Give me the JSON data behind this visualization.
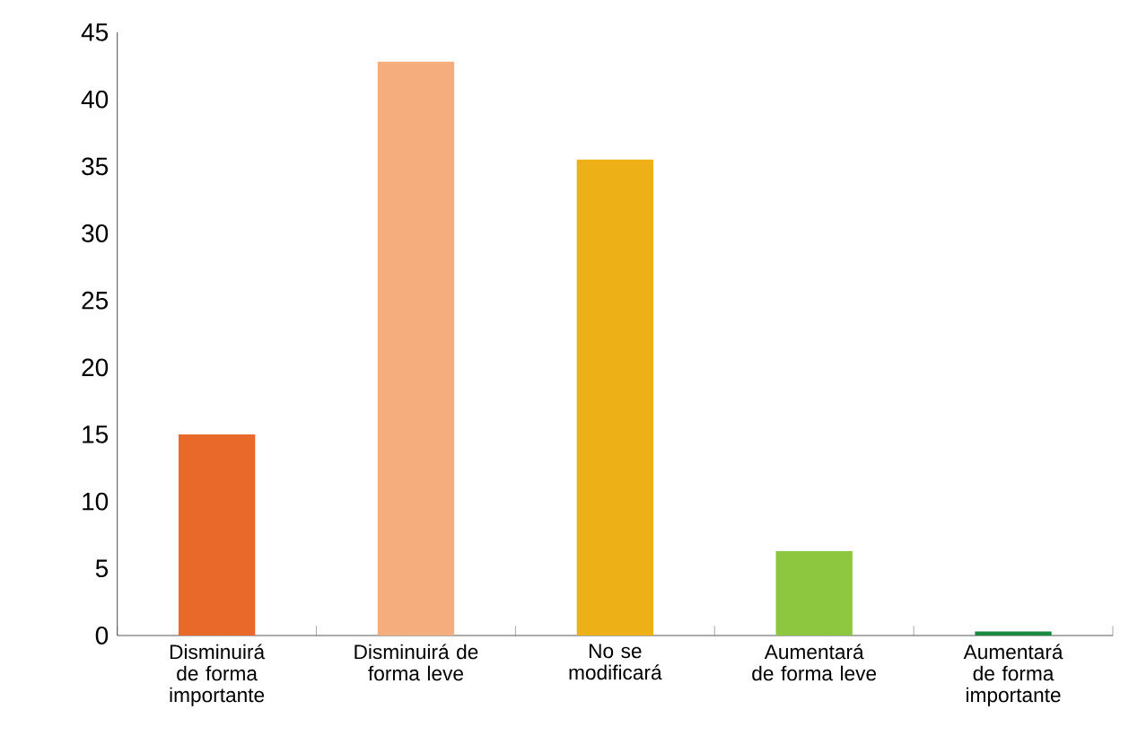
{
  "chart_data": {
    "type": "bar",
    "categories": [
      "Disminuirá de forma importante",
      "Disminuirá de forma leve",
      "No se modificará",
      "Aumentará de forma leve",
      "Aumentará de forma importante"
    ],
    "values": [
      15,
      42.8,
      35.5,
      6.3,
      0.3
    ],
    "colors": [
      "#e8692a",
      "#f5ad7d",
      "#eeb017",
      "#8dc63f",
      "#1a8a3e"
    ],
    "ylim": [
      0,
      45
    ],
    "yticks": [
      0,
      5,
      10,
      15,
      20,
      25,
      30,
      35,
      40,
      45
    ],
    "grid": false
  }
}
